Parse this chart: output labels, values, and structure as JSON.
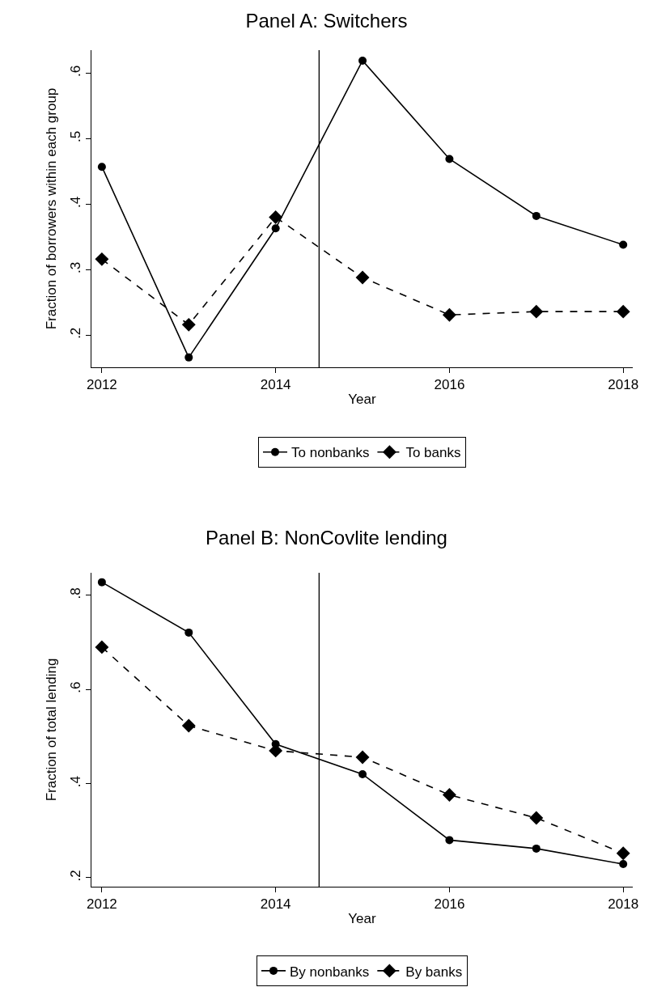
{
  "chart_data": [
    {
      "type": "line",
      "title": "Panel A: Switchers",
      "xlabel": "Year",
      "ylabel": "Fraction of borrowers within each group",
      "x": [
        2012,
        2013,
        2014,
        2015,
        2016,
        2017,
        2018
      ],
      "series": [
        {
          "name": "To nonbanks",
          "color": "#000000",
          "marker": "circle",
          "line_style": "solid",
          "values": [
            0.457,
            0.166,
            0.363,
            0.619,
            0.469,
            0.382,
            0.338
          ]
        },
        {
          "name": "To banks",
          "color": "#000000",
          "marker": "diamond",
          "line_style": "dashed",
          "values": [
            0.316,
            0.216,
            0.38,
            0.288,
            0.231,
            0.236,
            0.236
          ]
        }
      ],
      "xlim": [
        2011.88,
        2018.11
      ],
      "xticks": [
        2012,
        2014,
        2016,
        2018
      ],
      "ylim": [
        0.151,
        0.635
      ],
      "yticks": [
        {
          "value": 0.2,
          "label": ".2"
        },
        {
          "value": 0.3,
          "label": ".3"
        },
        {
          "value": 0.4,
          "label": ".4"
        },
        {
          "value": 0.5,
          "label": ".5"
        },
        {
          "value": 0.6,
          "label": ".6"
        }
      ],
      "ref_lines": [
        {
          "axis": "x",
          "value": 2014.5,
          "label": null,
          "color": "#000000"
        }
      ],
      "grid": false,
      "legend": "bottom"
    },
    {
      "type": "line",
      "title": "Panel B: NonCovlite lending",
      "xlabel": "Year",
      "ylabel": "Fraction of total lending",
      "x": [
        2012,
        2013,
        2014,
        2015,
        2016,
        2017,
        2018
      ],
      "series": [
        {
          "name": "By nonbanks",
          "color": "#000000",
          "marker": "circle",
          "line_style": "solid",
          "values": [
            0.828,
            0.721,
            0.484,
            0.42,
            0.28,
            0.262,
            0.229
          ]
        },
        {
          "name": "By banks",
          "color": "#000000",
          "marker": "diamond",
          "line_style": "dashed",
          "values": [
            0.69,
            0.523,
            0.47,
            0.456,
            0.376,
            0.327,
            0.252
          ]
        }
      ],
      "xlim": [
        2011.88,
        2018.11
      ],
      "xticks": [
        2012,
        2014,
        2016,
        2018
      ],
      "ylim": [
        0.181,
        0.848
      ],
      "yticks": [
        {
          "value": 0.2,
          "label": ".2"
        },
        {
          "value": 0.4,
          "label": ".4"
        },
        {
          "value": 0.6,
          "label": ".6"
        },
        {
          "value": 0.8,
          "label": ".8"
        }
      ],
      "ref_lines": [
        {
          "axis": "x",
          "value": 2014.5,
          "label": null,
          "color": "#000000"
        }
      ],
      "grid": false,
      "legend": "bottom"
    }
  ]
}
